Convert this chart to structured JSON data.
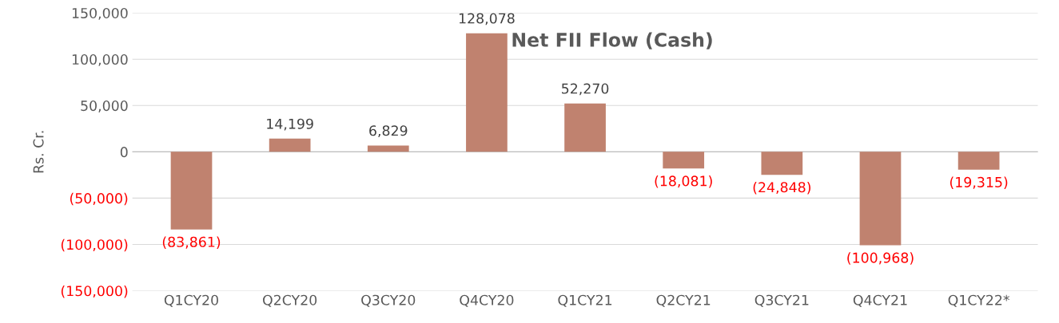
{
  "chart_data": {
    "type": "bar",
    "title": "Net FII Flow (Cash)",
    "ylabel": "Rs. Cr.",
    "categories": [
      "Q1CY20",
      "Q2CY20",
      "Q3CY20",
      "Q4CY20",
      "Q1CY21",
      "Q2CY21",
      "Q3CY21",
      "Q4CY21",
      "Q1CY22*"
    ],
    "values": [
      -83861,
      14199,
      6829,
      128078,
      52270,
      -18081,
      -24848,
      -100968,
      -19315
    ],
    "value_labels": [
      "(83,861)",
      "14,199",
      "6,829",
      "128,078",
      "52,270",
      "(18,081)",
      "(24,848)",
      "(100,968)",
      "(19,315)"
    ],
    "color": "#c0826f",
    "ylim": [
      -150000,
      150000
    ],
    "yticks": [
      {
        "value": -150000,
        "label": "(150,000)"
      },
      {
        "value": -100000,
        "label": "(100,000)"
      },
      {
        "value": -50000,
        "label": "(50,000)"
      },
      {
        "value": 0,
        "label": "0"
      },
      {
        "value": 50000,
        "label": "50,000"
      },
      {
        "value": 100000,
        "label": "100,000"
      },
      {
        "value": 150000,
        "label": "150,000"
      }
    ],
    "grid": "y"
  }
}
